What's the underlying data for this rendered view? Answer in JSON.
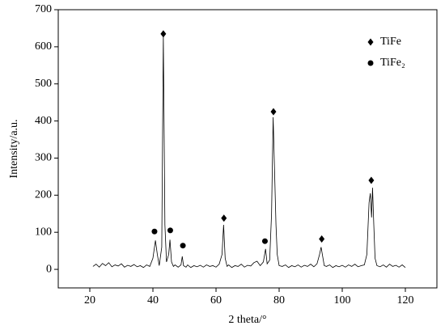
{
  "chart_data": {
    "type": "line",
    "xlabel": "2 theta/°",
    "ylabel": "Intensity/a.u.",
    "xlim": [
      10,
      130
    ],
    "ylim": [
      -50,
      700
    ],
    "xticks": [
      20,
      40,
      60,
      80,
      100,
      120
    ],
    "yticks": [
      0,
      100,
      200,
      300,
      400,
      500,
      600,
      700
    ],
    "legend": "upper right",
    "x": [
      21,
      22,
      23,
      24,
      25,
      26,
      27,
      28,
      29,
      30,
      31,
      32,
      33,
      34,
      35,
      36,
      37,
      38,
      39,
      40,
      40.8,
      41.4,
      42,
      42.8,
      43.3,
      43.8,
      44.3,
      45,
      45.4,
      45.9,
      46.5,
      47,
      48,
      48.9,
      49.3,
      49.7,
      50.5,
      51,
      52,
      53,
      54,
      55,
      56,
      57,
      58,
      59,
      60,
      61,
      61.9,
      62.4,
      62.9,
      63.5,
      64,
      65,
      66,
      67,
      68,
      69,
      70,
      71,
      72,
      73,
      74,
      75,
      75.7,
      76.2,
      77,
      77.6,
      78.1,
      78.6,
      79,
      79.4,
      80,
      81,
      82,
      83,
      84,
      85,
      86,
      87,
      88,
      89,
      90,
      91,
      92,
      92.8,
      93.3,
      93.8,
      94.3,
      95,
      96,
      97,
      98,
      99,
      100,
      101,
      102,
      103,
      104,
      105,
      106,
      107,
      107.8,
      108.5,
      108.9,
      109.3,
      109.6,
      110,
      110.4,
      111,
      112,
      113,
      114,
      115,
      116,
      117,
      118,
      119,
      120
    ],
    "series": [
      {
        "color": "#000000",
        "values": [
          8,
          14,
          6,
          16,
          10,
          18,
          7,
          12,
          9,
          15,
          6,
          11,
          8,
          13,
          7,
          10,
          5,
          12,
          8,
          30,
          78,
          40,
          10,
          60,
          630,
          120,
          20,
          40,
          80,
          20,
          8,
          12,
          6,
          12,
          35,
          10,
          6,
          12,
          5,
          10,
          7,
          11,
          6,
          12,
          8,
          10,
          6,
          14,
          40,
          120,
          30,
          8,
          12,
          5,
          10,
          8,
          14,
          6,
          11,
          9,
          18,
          22,
          10,
          20,
          55,
          15,
          25,
          150,
          410,
          250,
          120,
          40,
          10,
          8,
          12,
          5,
          10,
          7,
          12,
          6,
          11,
          8,
          14,
          7,
          15,
          40,
          60,
          35,
          10,
          8,
          12,
          5,
          10,
          7,
          11,
          6,
          12,
          8,
          14,
          7,
          10,
          12,
          40,
          180,
          205,
          140,
          220,
          120,
          30,
          10,
          7,
          12,
          6,
          14,
          8,
          11,
          6,
          12,
          5
        ]
      }
    ],
    "markers": [
      {
        "name": "TiFe",
        "shape": "diamond",
        "color": "#000000",
        "x": [
          43.3,
          62.5,
          78.2,
          93.5,
          109.2
        ],
        "values": [
          635,
          138,
          425,
          82,
          240
        ]
      },
      {
        "name": "TiFe₂",
        "shape": "circle",
        "color": "#000000",
        "x": [
          40.5,
          45.5,
          49.5,
          75.5
        ],
        "values": [
          102,
          105,
          64,
          76
        ]
      }
    ]
  }
}
